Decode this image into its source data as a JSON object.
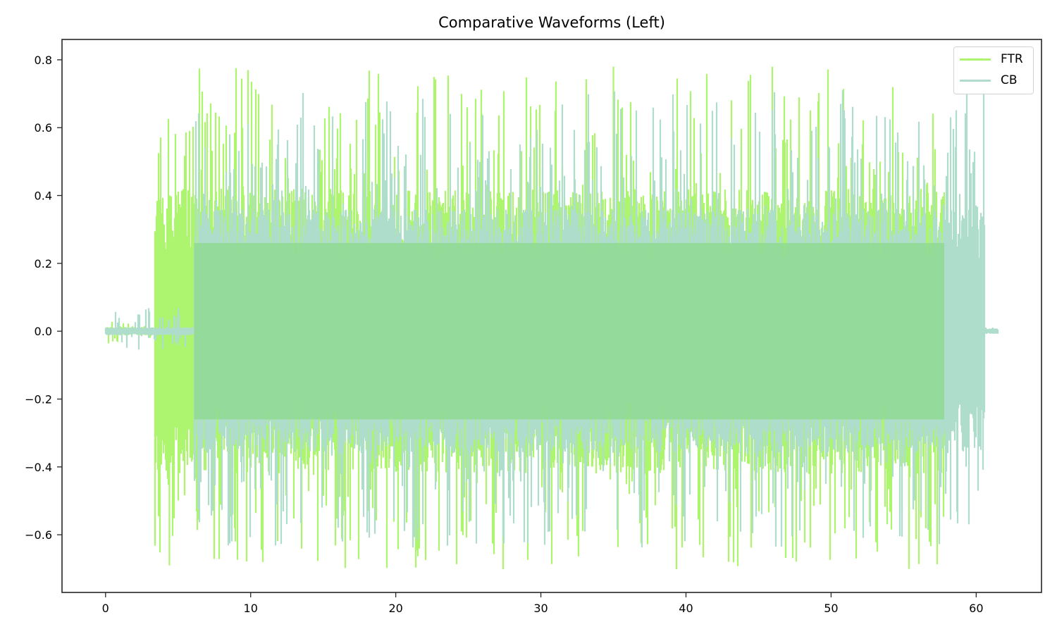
{
  "chart_data": {
    "type": "line",
    "title": "Comparative Waveforms (Left)",
    "xlabel": "",
    "ylabel": "",
    "xlim": [
      -3.0,
      64.5
    ],
    "ylim": [
      -0.77,
      0.86
    ],
    "grid": false,
    "legend_position": "upper right",
    "x_ticks": [
      0,
      10,
      20,
      30,
      40,
      50,
      60
    ],
    "x_tick_labels": [
      "0",
      "10",
      "20",
      "30",
      "40",
      "50",
      "60"
    ],
    "y_ticks": [
      0.8,
      0.6,
      0.4,
      0.2,
      0.0,
      -0.2,
      -0.4,
      -0.6
    ],
    "y_tick_labels": [
      "0.8",
      "0.6",
      "0.4",
      "0.2",
      "0.0",
      "−0.2",
      "−0.4",
      "−0.6"
    ],
    "series": [
      {
        "name": "FTR",
        "color": "#adf56e",
        "alpha": 1.0,
        "x_range": [
          0.0,
          58.5
        ],
        "segments": [
          {
            "x0": 0.0,
            "x1": 3.4,
            "amp": 0.012,
            "peak": 0.04
          },
          {
            "x0": 3.4,
            "x1": 57.8,
            "amp": 0.42,
            "peak": 0.78
          },
          {
            "x0": 57.8,
            "x1": 58.5,
            "amp": 0.006,
            "peak": 0.01
          }
        ],
        "max_value": 0.78,
        "max_at_x": 35.0,
        "min_value": -0.69,
        "min_at_x": 4.4
      },
      {
        "name": "CB",
        "color": "#aeddcc",
        "alpha": 1.0,
        "x_range": [
          0.0,
          61.5
        ],
        "segments": [
          {
            "x0": 0.0,
            "x1": 6.1,
            "amp": 0.012,
            "peak": 0.07
          },
          {
            "x0": 6.1,
            "x1": 60.6,
            "amp": 0.36,
            "peak": 0.71
          },
          {
            "x0": 60.6,
            "x1": 61.5,
            "amp": 0.008,
            "peak": 0.012
          }
        ],
        "max_value": 0.71,
        "max_at_x": 50.8,
        "min_value": -0.59,
        "min_at_x": 30.6
      }
    ],
    "overlap_color": "#8fdb92"
  },
  "legend": {
    "items": [
      {
        "label": "FTR",
        "color": "#adf56e"
      },
      {
        "label": "CB",
        "color": "#aeddcc"
      }
    ]
  }
}
